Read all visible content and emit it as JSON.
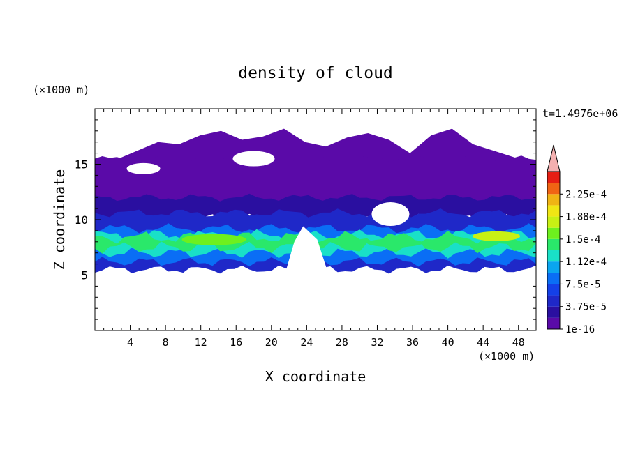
{
  "chart_data": {
    "type": "heatmap",
    "title": "density of cloud",
    "xlabel": "X coordinate",
    "ylabel": "Z coordinate",
    "x_unit": "(×1000 m)",
    "y_unit": "(×1000 m)",
    "time_label": "t=1.4976e+06",
    "xlim": [
      0,
      50
    ],
    "ylim": [
      0,
      20
    ],
    "x_ticks": [
      4,
      8,
      12,
      16,
      20,
      24,
      28,
      32,
      36,
      40,
      44,
      48
    ],
    "y_ticks": [
      5,
      10,
      15
    ],
    "colorbar": {
      "levels": [
        1e-16,
        1.875e-05,
        3.75e-05,
        5.625e-05,
        7.5e-05,
        9.375e-05,
        0.0001125,
        0.00013125,
        0.00015,
        0.00016875,
        0.0001875,
        0.00020625,
        0.000225,
        0.00024375
      ],
      "labels": [
        "1e-16",
        "3.75e-5",
        "7.5e-5",
        "1.12e-4",
        "1.5e-4",
        "1.88e-4",
        "2.25e-4"
      ],
      "colors": [
        "#5a0aa8",
        "#2a0fa0",
        "#1f28c8",
        "#1440e8",
        "#0a6ef5",
        "#0aa5f0",
        "#19e0c8",
        "#2ae86a",
        "#6ef01e",
        "#c8f014",
        "#f0e614",
        "#f0b414",
        "#f06414",
        "#e61e14"
      ],
      "extend_color": "#f4b0b0",
      "extend": "max"
    },
    "cloud_bands": [
      {
        "level": 0,
        "z_bottom": 11.5,
        "z_top": 15.5
      },
      {
        "level": 1,
        "z_bottom": 10.2,
        "z_top": 12.0
      },
      {
        "level": 2,
        "z_bottom": 5.5,
        "z_top": 10.6
      },
      {
        "level": 4,
        "z_bottom": 6.2,
        "z_top": 9.2
      },
      {
        "level": 6,
        "z_bottom": 7.0,
        "z_top": 8.6
      },
      {
        "level": 7,
        "z_bottom": 7.5,
        "z_top": 8.4
      }
    ]
  }
}
